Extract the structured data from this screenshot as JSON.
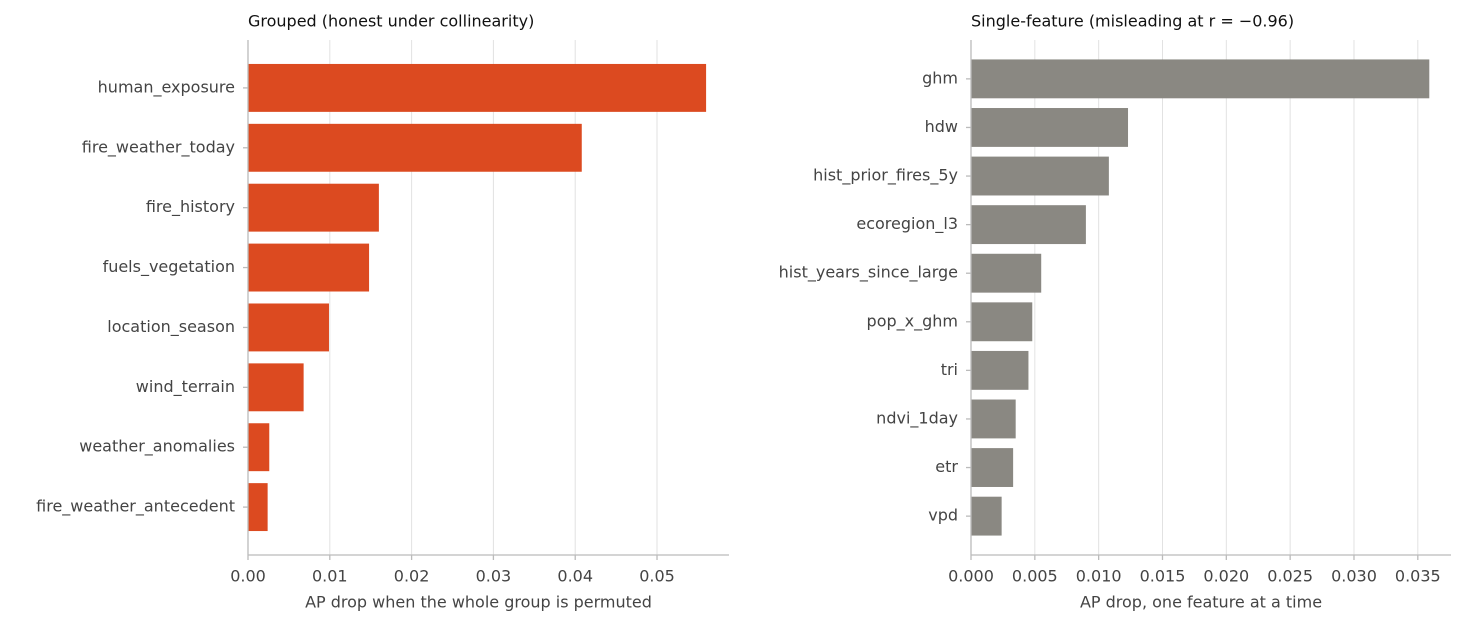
{
  "chart_data": [
    {
      "type": "barh",
      "title": "Grouped (honest under collinearity)",
      "xlabel": "AP drop when the whole group is permuted",
      "categories": [
        "human_exposure",
        "fire_weather_today",
        "fire_history",
        "fuels_vegetation",
        "location_season",
        "wind_terrain",
        "weather_anomalies",
        "fire_weather_antecedent"
      ],
      "values": [
        0.056,
        0.0408,
        0.016,
        0.0148,
        0.0099,
        0.0068,
        0.0026,
        0.0024
      ],
      "color": "#dc4a20",
      "xlim": [
        0,
        0.0588
      ],
      "xticks": [
        {
          "value": 0,
          "label": "0.00"
        },
        {
          "value": 0.01,
          "label": "0.01"
        },
        {
          "value": 0.02,
          "label": "0.02"
        },
        {
          "value": 0.03,
          "label": "0.03"
        },
        {
          "value": 0.04,
          "label": "0.04"
        },
        {
          "value": 0.05,
          "label": "0.05"
        }
      ],
      "grid": true
    },
    {
      "type": "barh",
      "title": "Single-feature (misleading at r = −0.96)",
      "xlabel": "AP drop, one feature at a time",
      "categories": [
        "ghm",
        "hdw",
        "hist_prior_fires_5y",
        "ecoregion_l3",
        "hist_years_since_large",
        "pop_x_ghm",
        "tri",
        "ndvi_1day",
        "etr",
        "vpd"
      ],
      "values": [
        0.0359,
        0.0123,
        0.0108,
        0.009,
        0.0055,
        0.0048,
        0.0045,
        0.0035,
        0.0033,
        0.0024
      ],
      "color": "#8a8882",
      "xlim": [
        0,
        0.0376
      ],
      "xticks": [
        {
          "value": 0,
          "label": "0.000"
        },
        {
          "value": 0.005,
          "label": "0.005"
        },
        {
          "value": 0.01,
          "label": "0.010"
        },
        {
          "value": 0.015,
          "label": "0.015"
        },
        {
          "value": 0.02,
          "label": "0.020"
        },
        {
          "value": 0.025,
          "label": "0.025"
        },
        {
          "value": 0.03,
          "label": "0.030"
        },
        {
          "value": 0.035,
          "label": "0.035"
        }
      ],
      "grid": true
    }
  ]
}
